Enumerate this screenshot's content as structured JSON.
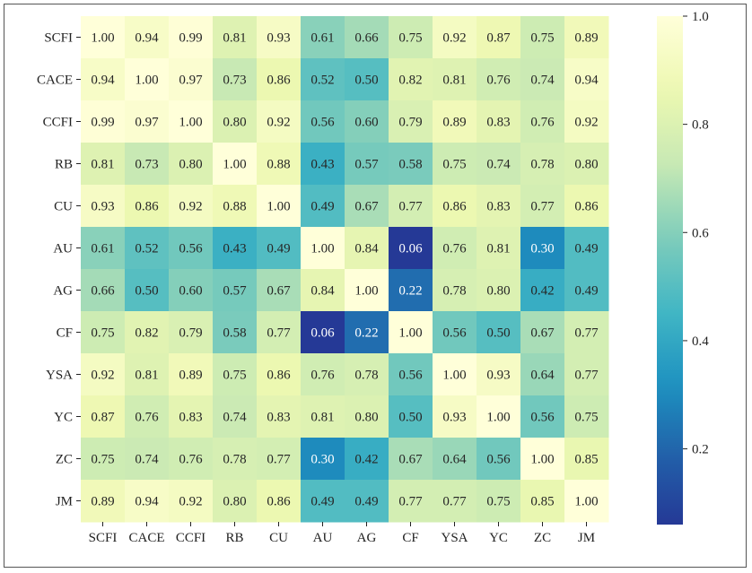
{
  "chart_data": {
    "type": "heatmap",
    "rows": [
      "SCFI",
      "CACE",
      "CCFI",
      "RB",
      "CU",
      "AU",
      "AG",
      "CF",
      "YSA",
      "YC",
      "ZC",
      "JM"
    ],
    "columns": [
      "SCFI",
      "CACE",
      "CCFI",
      "RB",
      "CU",
      "AU",
      "AG",
      "CF",
      "YSA",
      "YC",
      "ZC",
      "JM"
    ],
    "values": [
      [
        1.0,
        0.94,
        0.99,
        0.81,
        0.93,
        0.61,
        0.66,
        0.75,
        0.92,
        0.87,
        0.75,
        0.89
      ],
      [
        0.94,
        1.0,
        0.97,
        0.73,
        0.86,
        0.52,
        0.5,
        0.82,
        0.81,
        0.76,
        0.74,
        0.94
      ],
      [
        0.99,
        0.97,
        1.0,
        0.8,
        0.92,
        0.56,
        0.6,
        0.79,
        0.89,
        0.83,
        0.76,
        0.92
      ],
      [
        0.81,
        0.73,
        0.8,
        1.0,
        0.88,
        0.43,
        0.57,
        0.58,
        0.75,
        0.74,
        0.78,
        0.8
      ],
      [
        0.93,
        0.86,
        0.92,
        0.88,
        1.0,
        0.49,
        0.67,
        0.77,
        0.86,
        0.83,
        0.77,
        0.86
      ],
      [
        0.61,
        0.52,
        0.56,
        0.43,
        0.49,
        1.0,
        0.84,
        0.06,
        0.76,
        0.81,
        0.3,
        0.49
      ],
      [
        0.66,
        0.5,
        0.6,
        0.57,
        0.67,
        0.84,
        1.0,
        0.22,
        0.78,
        0.8,
        0.42,
        0.49
      ],
      [
        0.75,
        0.82,
        0.79,
        0.58,
        0.77,
        0.06,
        0.22,
        1.0,
        0.56,
        0.5,
        0.67,
        0.77
      ],
      [
        0.92,
        0.81,
        0.89,
        0.75,
        0.86,
        0.76,
        0.78,
        0.56,
        1.0,
        0.93,
        0.64,
        0.77
      ],
      [
        0.87,
        0.76,
        0.83,
        0.74,
        0.83,
        0.81,
        0.8,
        0.5,
        0.93,
        1.0,
        0.56,
        0.75
      ],
      [
        0.75,
        0.74,
        0.76,
        0.78,
        0.77,
        0.3,
        0.42,
        0.67,
        0.64,
        0.56,
        1.0,
        0.85
      ],
      [
        0.89,
        0.94,
        0.92,
        0.8,
        0.86,
        0.49,
        0.49,
        0.77,
        0.77,
        0.75,
        0.85,
        1.0
      ]
    ],
    "value_format": "2 decimals",
    "colormap": "YlGnBu",
    "color_range": [
      0.06,
      1.0
    ],
    "colorbar_ticks": [
      "0.2",
      "0.4",
      "0.6",
      "0.8",
      "1.0"
    ],
    "colorbar_tick_values": [
      0.2,
      0.4,
      0.6,
      0.8,
      1.0
    ],
    "colorbar_position": "right",
    "grid": false,
    "title": "",
    "xlabel": "",
    "ylabel": ""
  }
}
